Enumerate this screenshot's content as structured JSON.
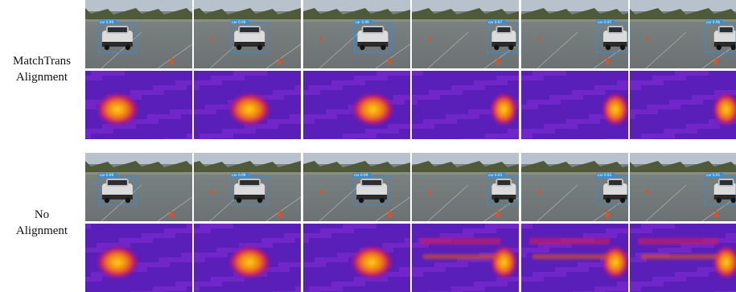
{
  "groups": [
    {
      "label_lines": [
        "MatchTrans",
        "Alignment"
      ],
      "frames": [
        {
          "box_label": "car 0.99"
        },
        {
          "box_label": "car 0.99"
        },
        {
          "box_label": "car 0.99"
        },
        {
          "box_label": "car 0.97"
        },
        {
          "box_label": "car 0.97"
        },
        {
          "box_label": "car 0.96"
        }
      ]
    },
    {
      "label_lines": [
        "No",
        "Alignment"
      ],
      "frames": [
        {
          "box_label": "car 0.99"
        },
        {
          "box_label": "car 0.99"
        },
        {
          "box_label": "car 0.99"
        },
        {
          "box_label": "car 0.93"
        },
        {
          "box_label": "car 0.92"
        },
        {
          "box_label": "car 0.91"
        }
      ]
    }
  ],
  "colors": {
    "sky": "#b7c2cc",
    "trees": "#4e5a3a",
    "road": "#6c7273",
    "box": "#2f8fe0",
    "heat_low": "#5a1fb8",
    "heat_mid": "#c2186b",
    "heat_high": "#ffd21a"
  }
}
